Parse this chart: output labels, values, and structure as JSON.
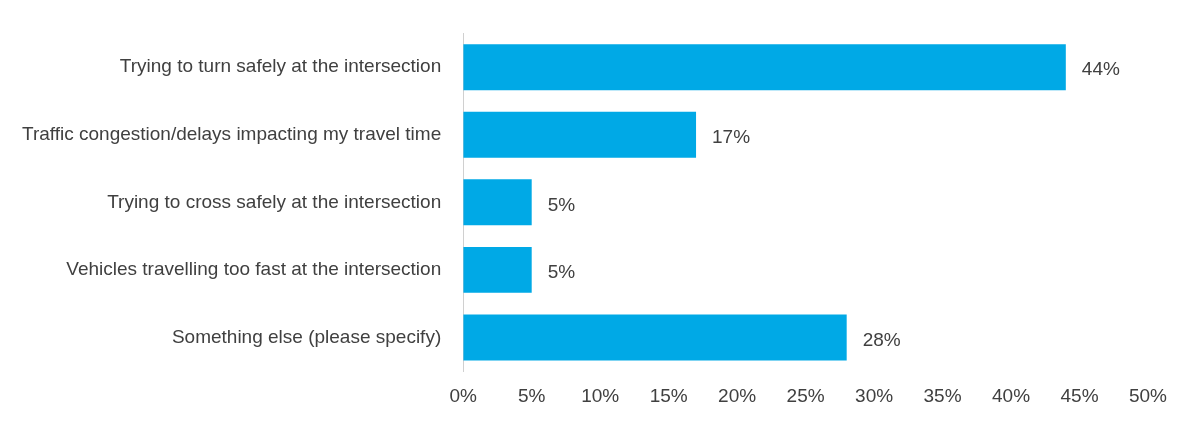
{
  "chart_data": {
    "type": "bar",
    "orientation": "horizontal",
    "categories": [
      "Trying to turn safely at the intersection",
      "Traffic congestion/delays impacting my travel time",
      "Trying to cross safely at the intersection",
      "Vehicles travelling too fast at the intersection",
      "Something else (please specify)"
    ],
    "values": [
      44,
      17,
      5,
      5,
      28
    ],
    "value_labels": [
      "44%",
      "17%",
      "5%",
      "5%",
      "28%"
    ],
    "color": "#00a9e6",
    "xlim": [
      0,
      50
    ],
    "xticks": [
      {
        "value": 0,
        "label": "0%"
      },
      {
        "value": 5,
        "label": "5%"
      },
      {
        "value": 10,
        "label": "10%"
      },
      {
        "value": 15,
        "label": "15%"
      },
      {
        "value": 20,
        "label": "20%"
      },
      {
        "value": 25,
        "label": "25%"
      },
      {
        "value": 30,
        "label": "30%"
      },
      {
        "value": 35,
        "label": "35%"
      },
      {
        "value": 40,
        "label": "40%"
      },
      {
        "value": 45,
        "label": "45%"
      },
      {
        "value": 50,
        "label": "50%"
      }
    ],
    "grid": false,
    "legend": false
  }
}
